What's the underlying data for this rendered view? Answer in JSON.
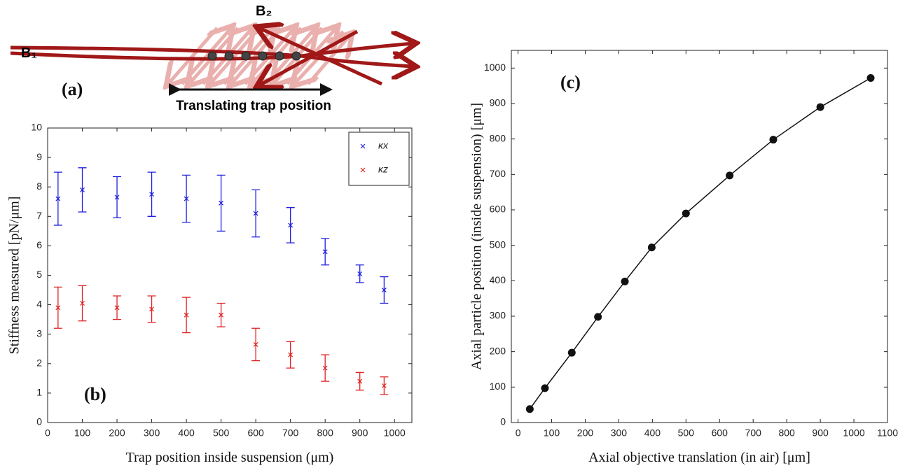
{
  "diagram": {
    "label": "(a)",
    "beam_1": "B₁",
    "beam_2": "B₂",
    "caption": "Translating trap position"
  },
  "chart_data": [
    {
      "type": "scatter",
      "label": "(b)",
      "x_label": "Trap position inside suspension (μm)",
      "y_label": "Stiffness measured [pN/μm]",
      "x": [
        30,
        100,
        200,
        300,
        400,
        500,
        600,
        700,
        800,
        900,
        970
      ],
      "series": [
        {
          "name": "κx",
          "color": "#1f1fe0",
          "values": [
            7.6,
            7.9,
            7.65,
            7.75,
            7.6,
            7.45,
            7.1,
            6.7,
            5.8,
            5.05,
            4.5
          ],
          "errors": [
            0.9,
            0.75,
            0.7,
            0.75,
            0.8,
            0.95,
            0.8,
            0.6,
            0.45,
            0.3,
            0.45
          ]
        },
        {
          "name": "κz",
          "color": "#e02020",
          "values": [
            3.9,
            4.05,
            3.9,
            3.85,
            3.65,
            3.65,
            2.65,
            2.3,
            1.85,
            1.4,
            1.25
          ],
          "errors": [
            0.7,
            0.6,
            0.4,
            0.45,
            0.6,
            0.4,
            0.55,
            0.45,
            0.45,
            0.3,
            0.3
          ]
        }
      ],
      "xlim": [
        0,
        1050
      ],
      "xticks": [
        0,
        100,
        200,
        300,
        400,
        500,
        600,
        700,
        800,
        900,
        1000
      ],
      "ylim": [
        0,
        10
      ],
      "yticks": [
        0,
        1,
        2,
        3,
        4,
        5,
        6,
        7,
        8,
        9,
        10
      ],
      "legend": "upper right"
    },
    {
      "type": "line",
      "label": "(c)",
      "x_label": "Axial  objective translation (in air) [μm]",
      "y_label": "Axial  particle position (inside suspension) [μm]",
      "x": [
        35,
        80,
        160,
        238,
        318,
        398,
        500,
        630,
        760,
        900,
        1050
      ],
      "values": [
        38,
        97,
        197,
        298,
        398,
        494,
        590,
        697,
        798,
        890,
        972
      ],
      "color": "#111111",
      "markers": true,
      "xlim": [
        -20,
        1100
      ],
      "xticks": [
        0,
        100,
        200,
        300,
        400,
        500,
        600,
        700,
        800,
        900,
        1000,
        1100
      ],
      "ylim": [
        0,
        1050
      ],
      "yticks": [
        0,
        100,
        200,
        300,
        400,
        500,
        600,
        700,
        800,
        900,
        1000
      ]
    }
  ]
}
